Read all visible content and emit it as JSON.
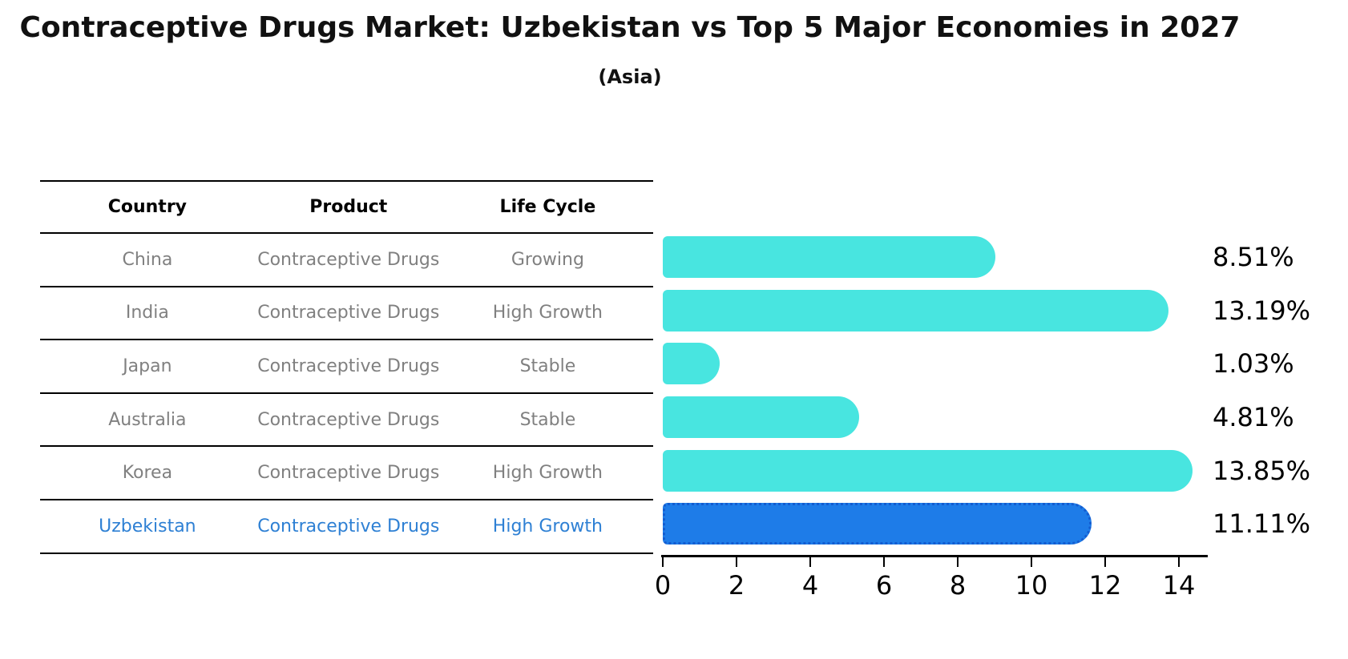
{
  "header": {
    "title": "Contraceptive Drugs Market: Uzbekistan vs Top 5 Major Economies in 2027",
    "subtitle": "(Asia)"
  },
  "table": {
    "columns": [
      "Country",
      "Product",
      "Life Cycle"
    ],
    "rows": [
      {
        "country": "China",
        "product": "Contraceptive Drugs",
        "life_cycle": "Growing",
        "highlight": false
      },
      {
        "country": "India",
        "product": "Contraceptive Drugs",
        "life_cycle": "High Growth",
        "highlight": false
      },
      {
        "country": "Japan",
        "product": "Contraceptive Drugs",
        "life_cycle": "Stable",
        "highlight": false
      },
      {
        "country": "Australia",
        "product": "Contraceptive Drugs",
        "life_cycle": "Stable",
        "highlight": false
      },
      {
        "country": "Korea",
        "product": "Contraceptive Drugs",
        "life_cycle": "High Growth",
        "highlight": false
      },
      {
        "country": "Uzbekistan",
        "product": "Contraceptive Drugs",
        "life_cycle": "High Growth",
        "highlight": true
      }
    ]
  },
  "chart_data": {
    "type": "bar",
    "orientation": "horizontal",
    "title": "Contraceptive Drugs Market: Uzbekistan vs Top 5 Major Economies in 2027",
    "subtitle": "(Asia)",
    "categories": [
      "China",
      "India",
      "Japan",
      "Australia",
      "Korea",
      "Uzbekistan"
    ],
    "values": [
      8.51,
      13.19,
      1.03,
      4.81,
      13.85,
      11.11
    ],
    "value_labels": [
      "8.51%",
      "13.19%",
      "1.03%",
      "4.81%",
      "13.85%",
      "11.11%"
    ],
    "x_ticks": [
      0,
      2,
      4,
      6,
      8,
      10,
      12,
      14
    ],
    "xlim": [
      0,
      14.8
    ],
    "grid": false,
    "legend": "none",
    "highlight_index": 5,
    "bar_color": "#48e5e0",
    "highlight_color": "#1e7ce8",
    "highlight_border_color": "#135cd0",
    "highlight_text_color": "#2e80d4"
  }
}
